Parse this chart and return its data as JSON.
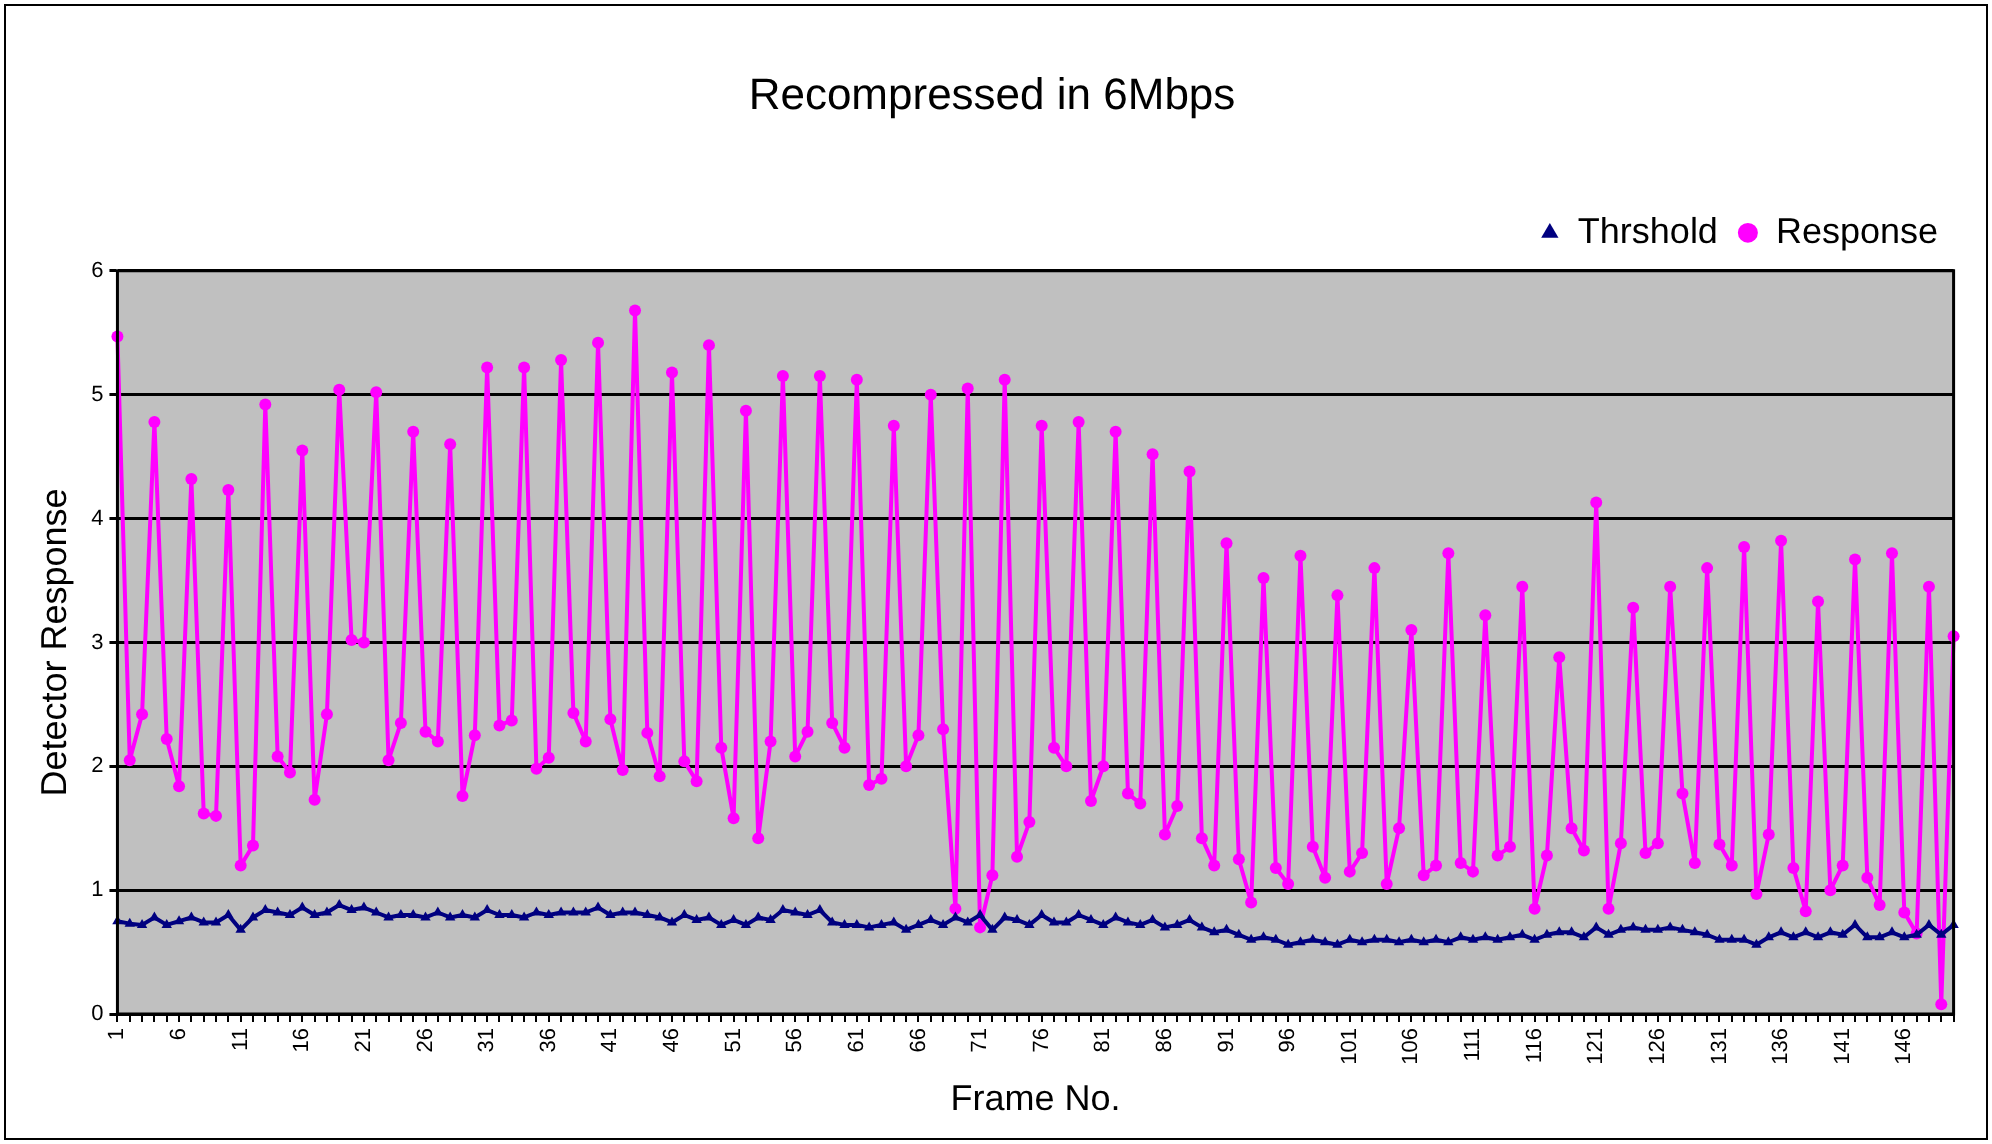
{
  "chart_data": {
    "type": "line",
    "title": "Recompressed in 6Mbps",
    "xlabel": "Frame No.",
    "ylabel": "Detector Response",
    "categories": [
      "1",
      null,
      null,
      null,
      null,
      "6",
      null,
      null,
      null,
      null,
      "11",
      null,
      null,
      null,
      null,
      "16",
      null,
      null,
      null,
      null,
      "21",
      null,
      null,
      null,
      null,
      "26",
      null,
      null,
      null,
      null,
      "31",
      null,
      null,
      null,
      null,
      "36",
      null,
      null,
      null,
      null,
      "41",
      null,
      null,
      null,
      null,
      "46",
      null,
      null,
      null,
      null,
      "51",
      null,
      null,
      null,
      null,
      "56",
      null,
      null,
      null,
      null,
      "61",
      null,
      null,
      null,
      null,
      "66",
      null,
      null,
      null,
      null,
      "71",
      null,
      null,
      null,
      null,
      "76",
      null,
      null,
      null,
      null,
      "81",
      null,
      null,
      null,
      null,
      "86",
      null,
      null,
      null,
      null,
      "91",
      null,
      null,
      null,
      null,
      "96",
      null,
      null,
      null,
      null,
      "101",
      null,
      null,
      null,
      null,
      "106",
      null,
      null,
      null,
      null,
      "111",
      null,
      null,
      null,
      null,
      "116",
      null,
      null,
      null,
      null,
      "121",
      null,
      null,
      null,
      null,
      "126",
      null,
      null,
      null,
      null,
      "131",
      null,
      null,
      null,
      null,
      "136",
      null,
      null,
      null,
      null,
      "141",
      null,
      null,
      null,
      null,
      "146",
      null,
      null,
      null,
      null
    ],
    "series": [
      {
        "name": "Thrshold",
        "color": "#000080",
        "marker": "triangle",
        "values": [
          0.75,
          0.73,
          0.72,
          0.78,
          0.72,
          0.75,
          0.78,
          0.74,
          0.74,
          0.8,
          0.68,
          0.78,
          0.84,
          0.82,
          0.8,
          0.86,
          0.8,
          0.82,
          0.88,
          0.84,
          0.86,
          0.82,
          0.78,
          0.8,
          0.8,
          0.78,
          0.82,
          0.78,
          0.8,
          0.78,
          0.84,
          0.8,
          0.8,
          0.78,
          0.82,
          0.8,
          0.82,
          0.82,
          0.82,
          0.86,
          0.8,
          0.82,
          0.82,
          0.8,
          0.78,
          0.74,
          0.8,
          0.76,
          0.78,
          0.72,
          0.76,
          0.72,
          0.78,
          0.76,
          0.84,
          0.82,
          0.8,
          0.84,
          0.74,
          0.72,
          0.72,
          0.7,
          0.72,
          0.74,
          0.68,
          0.72,
          0.76,
          0.72,
          0.78,
          0.74,
          0.8,
          0.68,
          0.78,
          0.76,
          0.72,
          0.8,
          0.74,
          0.74,
          0.8,
          0.76,
          0.72,
          0.78,
          0.74,
          0.72,
          0.76,
          0.7,
          0.72,
          0.76,
          0.7,
          0.66,
          0.68,
          0.64,
          0.6,
          0.62,
          0.6,
          0.56,
          0.58,
          0.6,
          0.58,
          0.56,
          0.6,
          0.58,
          0.6,
          0.6,
          0.58,
          0.6,
          0.58,
          0.6,
          0.58,
          0.62,
          0.6,
          0.62,
          0.6,
          0.62,
          0.64,
          0.6,
          0.64,
          0.66,
          0.66,
          0.62,
          0.7,
          0.64,
          0.68,
          0.7,
          0.68,
          0.68,
          0.7,
          0.68,
          0.66,
          0.64,
          0.6,
          0.6,
          0.6,
          0.56,
          0.62,
          0.66,
          0.62,
          0.66,
          0.62,
          0.66,
          0.64,
          0.72,
          0.62,
          0.62,
          0.66,
          0.62,
          0.64,
          0.72,
          0.64,
          0.72
        ]
      },
      {
        "name": "Response",
        "color": "#ff00ff",
        "marker": "circle",
        "values": [
          5.47,
          2.05,
          2.42,
          4.78,
          2.22,
          1.84,
          4.32,
          1.62,
          1.6,
          4.23,
          1.2,
          1.36,
          4.92,
          2.08,
          1.95,
          4.55,
          1.73,
          2.42,
          5.04,
          3.02,
          3.0,
          5.02,
          2.05,
          2.35,
          4.7,
          2.28,
          2.2,
          4.6,
          1.76,
          2.25,
          5.22,
          2.33,
          2.37,
          5.22,
          1.98,
          2.07,
          5.28,
          2.43,
          2.2,
          5.42,
          2.38,
          1.97,
          5.68,
          2.27,
          1.92,
          5.18,
          2.04,
          1.88,
          5.4,
          2.15,
          1.58,
          4.87,
          1.42,
          2.2,
          5.15,
          2.08,
          2.28,
          5.15,
          2.35,
          2.15,
          5.12,
          1.85,
          1.9,
          4.75,
          2.0,
          2.25,
          5.0,
          2.3,
          0.85,
          5.05,
          0.7,
          1.12,
          5.12,
          1.27,
          1.55,
          4.75,
          2.15,
          2.0,
          4.78,
          1.72,
          2.0,
          4.7,
          1.78,
          1.7,
          4.52,
          1.45,
          1.68,
          4.38,
          1.42,
          1.2,
          3.8,
          1.25,
          0.9,
          3.52,
          1.18,
          1.05,
          3.7,
          1.35,
          1.1,
          3.38,
          1.15,
          1.3,
          3.6,
          1.05,
          1.5,
          3.1,
          1.12,
          1.2,
          3.72,
          1.22,
          1.15,
          3.22,
          1.28,
          1.35,
          3.45,
          0.85,
          1.28,
          2.88,
          1.5,
          1.32,
          4.13,
          0.85,
          1.38,
          3.28,
          1.3,
          1.38,
          3.45,
          1.78,
          1.22,
          3.6,
          1.37,
          1.2,
          3.77,
          0.97,
          1.45,
          3.82,
          1.18,
          0.83,
          3.33,
          1.0,
          1.2,
          3.67,
          1.1,
          0.88,
          3.72,
          0.82,
          0.65,
          3.45,
          0.08,
          3.05
        ]
      }
    ],
    "ylim": [
      0,
      6
    ],
    "yticks": [
      0,
      1,
      2,
      3,
      4,
      5,
      6
    ],
    "grid": "y",
    "legend": "top right"
  }
}
